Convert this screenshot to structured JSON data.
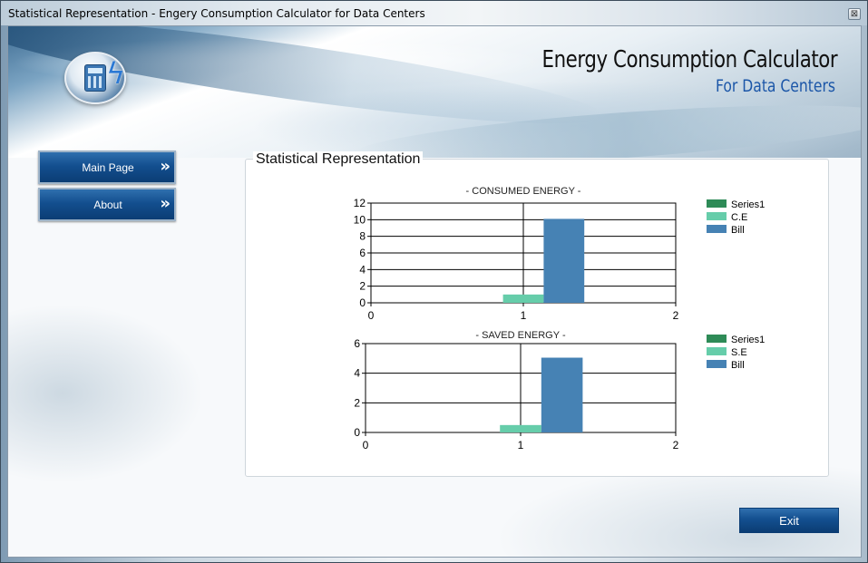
{
  "window": {
    "title": "Statistical Representation - Engery Consumption Calculator for Data Centers",
    "close_glyph": "⊠"
  },
  "header": {
    "title": "Energy Consumption Calculator",
    "subtitle": "For Data Centers"
  },
  "nav": {
    "items": [
      {
        "label": "Main Page",
        "chevron": "»"
      },
      {
        "label": "About",
        "chevron": "»"
      }
    ]
  },
  "group": {
    "title": "Statistical Representation"
  },
  "exit": {
    "label": "Exit"
  },
  "colors": {
    "series1": "#2e8b57",
    "secondary": "#66cdaa",
    "bill": "#4682b4",
    "button_blue": "#134f8f"
  },
  "chart_data": [
    {
      "type": "bar",
      "title": "- CONSUMED ENERGY -",
      "x_ticks": [
        "0",
        "1",
        "2"
      ],
      "xlim": [
        0,
        2
      ],
      "y_ticks": [
        "0",
        "2",
        "4",
        "6",
        "8",
        "10",
        "12"
      ],
      "ylim": [
        0,
        12
      ],
      "grid": true,
      "legend_position": "right",
      "series": [
        {
          "name": "Series1",
          "color": "#2e8b57",
          "points": []
        },
        {
          "name": "C.E",
          "color": "#66cdaa",
          "points": [
            {
              "x": 1,
              "y": 1
            }
          ]
        },
        {
          "name": "Bill",
          "color": "#4682b4",
          "points": [
            {
              "x": 1,
              "y": 10.1
            }
          ]
        }
      ]
    },
    {
      "type": "bar",
      "title": "- SAVED ENERGY -",
      "x_ticks": [
        "0",
        "1",
        "2"
      ],
      "xlim": [
        0,
        2
      ],
      "y_ticks": [
        "0",
        "2",
        "4",
        "6"
      ],
      "ylim": [
        0,
        6
      ],
      "grid": true,
      "legend_position": "right",
      "series": [
        {
          "name": "Series1",
          "color": "#2e8b57",
          "points": []
        },
        {
          "name": "S.E",
          "color": "#66cdaa",
          "points": [
            {
              "x": 1,
              "y": 0.5
            }
          ]
        },
        {
          "name": "Bill",
          "color": "#4682b4",
          "points": [
            {
              "x": 1,
              "y": 5.05
            }
          ]
        }
      ]
    }
  ]
}
